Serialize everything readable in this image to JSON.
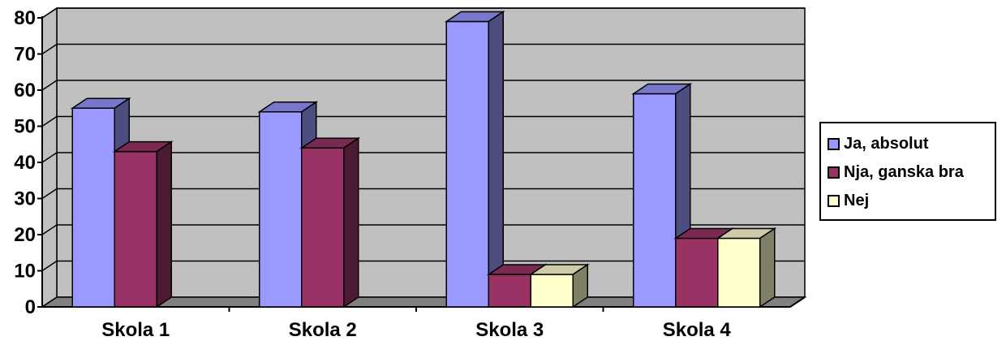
{
  "chart_data": {
    "type": "bar",
    "categories": [
      "Skola 1",
      "Skola 2",
      "Skola 3",
      "Skola 4"
    ],
    "series": [
      {
        "name": "Ja, absolut",
        "values": [
          55,
          54,
          79,
          59
        ],
        "color": "#9999ff",
        "side_color": "#4d4d80",
        "top_color": "#7777cc"
      },
      {
        "name": "Nja, ganska bra",
        "values": [
          43,
          44,
          9,
          19
        ],
        "color": "#993366",
        "side_color": "#4d1a33",
        "top_color": "#7a2952"
      },
      {
        "name": "Nej",
        "values": [
          0,
          0,
          9,
          19
        ],
        "color": "#ffffcc",
        "side_color": "#808066",
        "top_color": "#ccccaa"
      }
    ],
    "yticks": [
      "0",
      "10",
      "20",
      "30",
      "40",
      "50",
      "60",
      "70",
      "80"
    ],
    "ylim": [
      0,
      80
    ],
    "grid": true,
    "legend": "right",
    "wall_color": "#c0c0c0",
    "floor_color": "#808080"
  }
}
